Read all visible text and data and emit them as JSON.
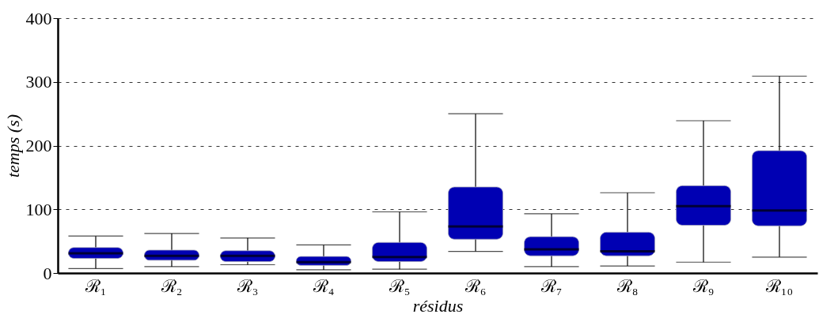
{
  "chart_data": {
    "type": "box",
    "xlabel": "résidus",
    "ylabel": "temps (s)",
    "categories": [
      "ℛ₁",
      "ℛ₂",
      "ℛ₃",
      "ℛ₄",
      "ℛ₅",
      "ℛ₆",
      "ℛ₇",
      "ℛ₈",
      "ℛ₉",
      "ℛ₁₀"
    ],
    "series": [
      {
        "color": "#0000b3",
        "boxes": [
          {
            "low": 7,
            "q1": 23,
            "median": 31,
            "q3": 40,
            "high": 58
          },
          {
            "low": 10,
            "q1": 20,
            "median": 27,
            "q3": 36,
            "high": 62
          },
          {
            "low": 13,
            "q1": 18,
            "median": 27,
            "q3": 35,
            "high": 55
          },
          {
            "low": 5,
            "q1": 12,
            "median": 17,
            "q3": 26,
            "high": 44
          },
          {
            "low": 6,
            "q1": 18,
            "median": 25,
            "q3": 48,
            "high": 96
          },
          {
            "low": 34,
            "q1": 53,
            "median": 73,
            "q3": 135,
            "high": 250
          },
          {
            "low": 10,
            "q1": 27,
            "median": 37,
            "q3": 57,
            "high": 93
          },
          {
            "low": 11,
            "q1": 27,
            "median": 34,
            "q3": 64,
            "high": 126
          },
          {
            "low": 17,
            "q1": 75,
            "median": 105,
            "q3": 137,
            "high": 239
          },
          {
            "low": 25,
            "q1": 74,
            "median": 98,
            "q3": 192,
            "high": 309
          }
        ]
      }
    ],
    "ylim": [
      0,
      400
    ],
    "yticks": [
      0,
      100,
      200,
      300,
      400
    ],
    "grid": "y"
  }
}
